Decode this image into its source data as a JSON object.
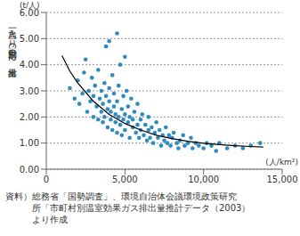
{
  "chart_data": {
    "type": "scatter",
    "y_label": "一人当たり自動車CO2排出量",
    "y_unit": "(t/人)",
    "x_unit": "(人/km²)",
    "source": [
      "資料）総務省「国勢調査」、環境自治体会議環境政策研究",
      "所「市町村別温室効果ガス排出量推計データ（2003）",
      "より作成"
    ],
    "xlim": [
      0,
      15000
    ],
    "xticks": [
      0,
      {
        "value": 5000,
        "label": "5,000"
      },
      {
        "value": 10000,
        "label": "10,000"
      },
      {
        "value": 15000,
        "label": "15,000"
      }
    ],
    "ylim": [
      0,
      6
    ],
    "yticks": [
      {
        "value": 0,
        "label": "0.00"
      },
      {
        "value": 1,
        "label": "1.00"
      },
      {
        "value": 2,
        "label": "2.00"
      },
      {
        "value": 3,
        "label": "3.00"
      },
      {
        "value": 4,
        "label": "4.00"
      },
      {
        "value": 5,
        "label": "5.00"
      },
      {
        "value": 6,
        "label": "6.00"
      }
    ],
    "grid": true,
    "series": [
      {
        "type": "scatter",
        "color": "#2e8bc0",
        "marker": "circle",
        "x": [
          1500,
          1800,
          2000,
          2100,
          2300,
          2400,
          2500,
          2600,
          2700,
          2800,
          2900,
          3000,
          3000,
          3100,
          3200,
          3300,
          3300,
          3400,
          3500,
          3500,
          3600,
          3600,
          3700,
          3700,
          3800,
          3800,
          3900,
          3900,
          4000,
          4000,
          4000,
          4100,
          4100,
          4200,
          4200,
          4300,
          4300,
          4400,
          4400,
          4500,
          4500,
          4500,
          4600,
          4600,
          4700,
          4700,
          4800,
          4800,
          4900,
          4900,
          5000,
          5000,
          5000,
          5100,
          5200,
          5200,
          5300,
          5300,
          5400,
          5500,
          5500,
          5600,
          5700,
          5800,
          5800,
          5900,
          6000,
          6000,
          6100,
          6200,
          6300,
          6400,
          6500,
          6500,
          6600,
          6700,
          6800,
          6900,
          7000,
          7100,
          7200,
          7300,
          7400,
          7500,
          7600,
          7700,
          7800,
          7900,
          8000,
          8100,
          8300,
          8400,
          8500,
          8700,
          8800,
          9000,
          9200,
          9300,
          9500,
          9700,
          10000,
          10200,
          10500,
          10800,
          11000,
          11500,
          12000,
          12500,
          13000,
          13600
        ],
        "values": [
          3.1,
          2.7,
          3.4,
          2.5,
          2.9,
          3.7,
          4.2,
          2.2,
          3.0,
          2.6,
          3.5,
          2.0,
          2.8,
          3.2,
          2.4,
          1.9,
          3.8,
          2.7,
          2.2,
          3.0,
          1.8,
          2.5,
          3.3,
          2.0,
          4.7,
          2.8,
          1.6,
          2.3,
          4.9,
          3.1,
          2.6,
          1.9,
          2.2,
          3.6,
          1.5,
          2.4,
          2.9,
          1.8,
          2.1,
          5.2,
          2.6,
          1.4,
          3.2,
          2.0,
          4.0,
          1.7,
          2.3,
          1.3,
          2.8,
          1.9,
          4.3,
          2.1,
          1.5,
          3.0,
          1.8,
          2.4,
          1.2,
          2.0,
          2.7,
          1.6,
          1.9,
          2.2,
          1.4,
          1.7,
          2.5,
          1.2,
          1.9,
          1.5,
          2.1,
          1.3,
          1.7,
          1.1,
          1.5,
          2.0,
          1.2,
          1.6,
          1.0,
          1.4,
          1.8,
          1.2,
          1.5,
          0.9,
          1.3,
          1.1,
          1.6,
          1.0,
          1.3,
          0.9,
          1.2,
          1.4,
          1.0,
          0.8,
          1.1,
          1.3,
          0.9,
          1.0,
          1.2,
          0.8,
          1.0,
          0.9,
          0.8,
          1.0,
          0.9,
          0.7,
          1.0,
          0.8,
          0.9,
          0.8,
          0.9,
          1.0
        ]
      },
      {
        "type": "line",
        "color": "#000000",
        "x": [
          1000,
          1500,
          2000,
          3000,
          4000,
          5000,
          6000,
          7000,
          8000,
          9000,
          10000,
          11000,
          12000,
          13000,
          13800
        ],
        "values": [
          4.35,
          3.75,
          3.3,
          2.6,
          2.1,
          1.75,
          1.5,
          1.3,
          1.17,
          1.07,
          0.99,
          0.94,
          0.9,
          0.87,
          0.85
        ]
      }
    ]
  }
}
